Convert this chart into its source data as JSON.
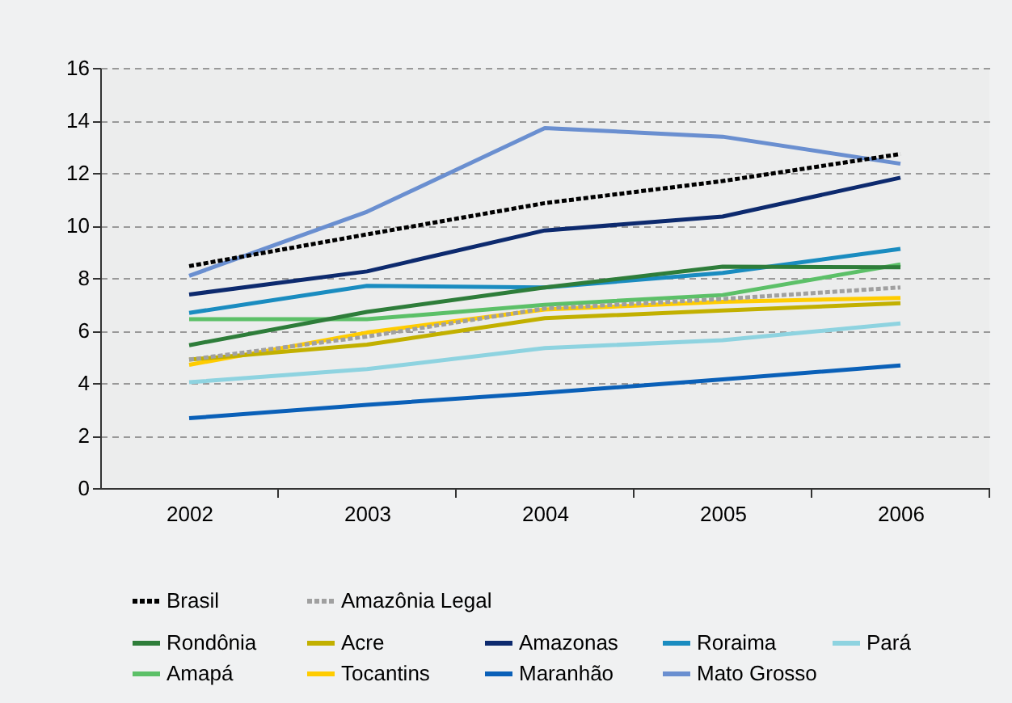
{
  "chart_data": {
    "type": "line",
    "categories": [
      "2002",
      "2003",
      "2004",
      "2005",
      "2006"
    ],
    "ylim": [
      0,
      16
    ],
    "yticks": [
      0,
      2,
      4,
      6,
      8,
      10,
      12,
      14,
      16
    ],
    "grid": "y",
    "legend": "bottom",
    "line_style": "solid",
    "marker": "none",
    "series": [
      {
        "name": "Brasil",
        "color": "#000000",
        "line_style": "dashed",
        "values": [
          8.45,
          9.66,
          10.85,
          11.69,
          12.72
        ]
      },
      {
        "name": "Amazônia Legal",
        "color": "#a0a0a0",
        "line_style": "dashed",
        "values": [
          4.89,
          5.77,
          6.84,
          7.2,
          7.64
        ]
      },
      {
        "name": "Rondônia",
        "color": "#2e7d3a",
        "values": [
          5.44,
          6.71,
          7.64,
          8.43,
          8.41
        ]
      },
      {
        "name": "Amapá",
        "color": "#5cc068",
        "values": [
          6.43,
          6.43,
          6.98,
          7.35,
          8.52
        ]
      },
      {
        "name": "Acre",
        "color": "#c2b000",
        "values": [
          4.89,
          5.46,
          6.47,
          6.76,
          7.04
        ]
      },
      {
        "name": "Tocantins",
        "color": "#ffcc00",
        "values": [
          4.69,
          5.92,
          6.8,
          7.09,
          7.24
        ]
      },
      {
        "name": "Amazonas",
        "color": "#0d2a6e",
        "values": [
          7.37,
          8.25,
          9.81,
          10.34,
          11.82
        ]
      },
      {
        "name": "Maranhão",
        "color": "#0a60b8",
        "values": [
          2.66,
          3.17,
          3.63,
          4.14,
          4.67
        ]
      },
      {
        "name": "Roraima",
        "color": "#1a8cc0",
        "values": [
          6.67,
          7.7,
          7.64,
          8.19,
          9.11
        ]
      },
      {
        "name": "Mato Grosso",
        "color": "#6a8fd0",
        "values": [
          8.08,
          10.52,
          13.71,
          13.38,
          12.35
        ]
      },
      {
        "name": "Pará",
        "color": "#8ed3e0",
        "values": [
          4.03,
          4.53,
          5.33,
          5.63,
          6.27
        ]
      }
    ]
  }
}
